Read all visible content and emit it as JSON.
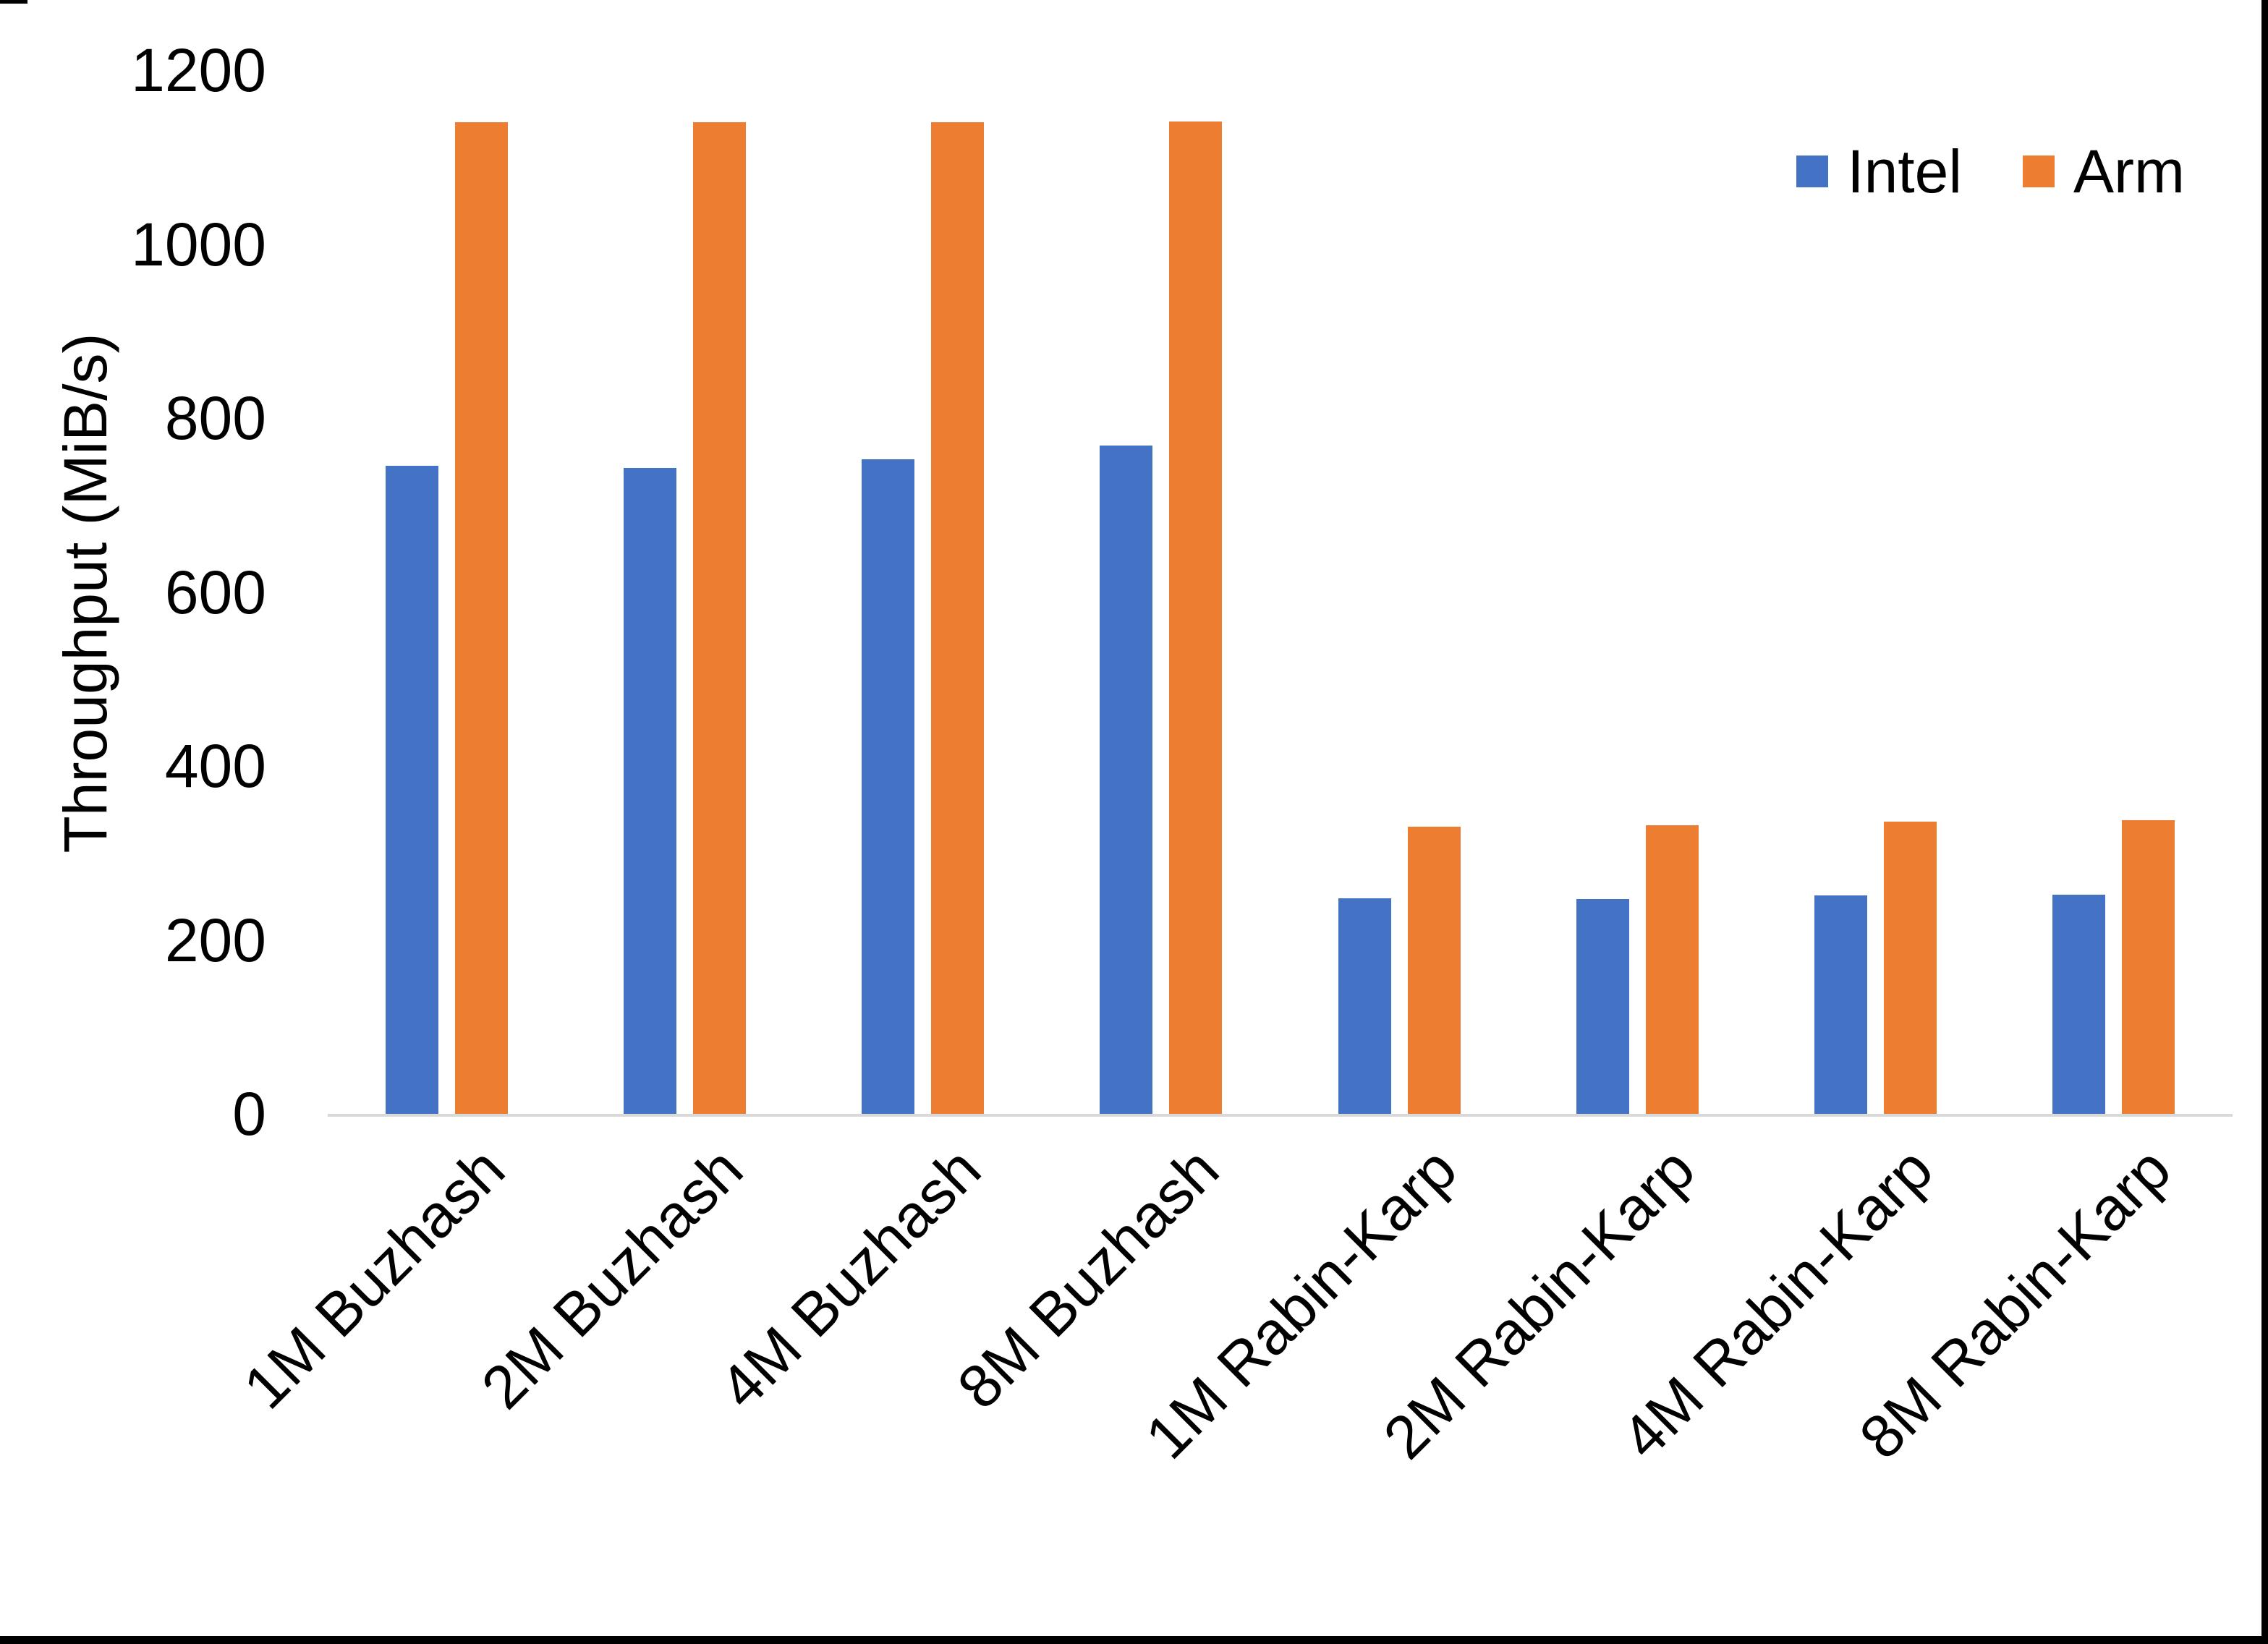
{
  "page": {
    "background": "#FFFFFF",
    "border_color": "#000000"
  },
  "chart_data": {
    "type": "bar",
    "title": "",
    "xlabel": "",
    "ylabel": "Throughput (MiB/s)",
    "ylim": [
      0,
      1200
    ],
    "ytick_step": 200,
    "ytick_labels": [
      "0",
      "200",
      "400",
      "600",
      "800",
      "1000",
      "1200"
    ],
    "grid": false,
    "legend_position": "top-right",
    "axis_line_color": "#D9D9D9",
    "text_color": "#000000",
    "categories": [
      "1M Buzhash",
      "2M Buzhash",
      "4M Buzhash",
      "8M Buzhash",
      "1M Rabin-Karp",
      "2M Rabin-Karp",
      "4M Rabin-Karp",
      "8M Rabin-Karp"
    ],
    "series": [
      {
        "name": "Intel",
        "color": "#4472C4",
        "values": [
          745,
          743,
          753,
          768,
          248,
          247,
          251,
          252
        ]
      },
      {
        "name": "Arm",
        "color": "#ED7D31",
        "values": [
          1140,
          1140,
          1140,
          1141,
          330,
          332,
          336,
          338
        ]
      }
    ]
  }
}
